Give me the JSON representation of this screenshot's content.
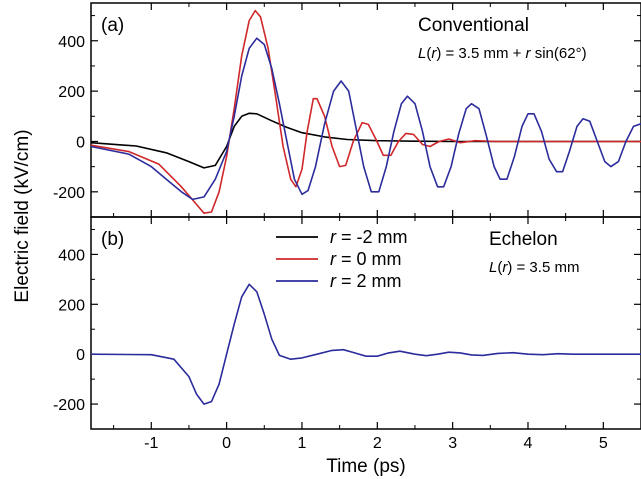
{
  "chart_data": {
    "type": "line",
    "xlabel": "Time (ps)",
    "ylabel": "Electric field (kV/cm)",
    "xlim": [
      -1.8,
      5.5
    ],
    "x_ticks": [
      "-1",
      "0",
      "1",
      "2",
      "3",
      "4",
      "5"
    ],
    "legend": {
      "placement": "top-center",
      "entries": [
        {
          "var": "r",
          "text": " = -2 mm",
          "color": "#000000"
        },
        {
          "var": "r",
          "text": " = 0 mm",
          "color": "#d0282a"
        },
        {
          "var": "r",
          "text": " = 2 mm",
          "color": "#2c2c9c"
        }
      ]
    },
    "panels": [
      {
        "id": "a",
        "tag": "(a)",
        "title": "Conventional",
        "note": {
          "prefix": "L",
          "var": "(r)",
          "mid": " = 3.5 mm + ",
          "var2": "r",
          "suffix": " sin(62°)"
        },
        "ylim": [
          -300,
          550
        ],
        "y_ticks": [
          "-200",
          "0",
          "200",
          "400"
        ],
        "series": [
          {
            "color": "#000000",
            "points": [
              [
                -1.8,
                -5
              ],
              [
                -1.2,
                -18
              ],
              [
                -0.8,
                -45
              ],
              [
                -0.5,
                -80
              ],
              [
                -0.3,
                -105
              ],
              [
                -0.15,
                -95
              ],
              [
                0,
                -20
              ],
              [
                0.1,
                60
              ],
              [
                0.2,
                100
              ],
              [
                0.3,
                112
              ],
              [
                0.4,
                110
              ],
              [
                0.6,
                82
              ],
              [
                0.8,
                56
              ],
              [
                1.0,
                35
              ],
              [
                1.3,
                18
              ],
              [
                1.6,
                8
              ],
              [
                2.0,
                3
              ],
              [
                2.5,
                1
              ],
              [
                3.0,
                0
              ],
              [
                5.5,
                0
              ]
            ]
          },
          {
            "color": "#d0282a",
            "points": [
              [
                -1.8,
                -15
              ],
              [
                -1.3,
                -40
              ],
              [
                -0.9,
                -90
              ],
              [
                -0.6,
                -180
              ],
              [
                -0.4,
                -250
              ],
              [
                -0.3,
                -285
              ],
              [
                -0.2,
                -280
              ],
              [
                -0.1,
                -200
              ],
              [
                0,
                -60
              ],
              [
                0.1,
                130
              ],
              [
                0.2,
                340
              ],
              [
                0.3,
                480
              ],
              [
                0.38,
                520
              ],
              [
                0.45,
                495
              ],
              [
                0.55,
                370
              ],
              [
                0.65,
                180
              ],
              [
                0.75,
                -20
              ],
              [
                0.85,
                -150
              ],
              [
                0.92,
                -180
              ],
              [
                1.0,
                -110
              ],
              [
                1.07,
                40
              ],
              [
                1.15,
                170
              ],
              [
                1.2,
                170
              ],
              [
                1.3,
                100
              ],
              [
                1.4,
                -20
              ],
              [
                1.5,
                -100
              ],
              [
                1.58,
                -95
              ],
              [
                1.68,
                0
              ],
              [
                1.8,
                75
              ],
              [
                1.88,
                68
              ],
              [
                1.98,
                10
              ],
              [
                2.08,
                -55
              ],
              [
                2.18,
                -55
              ],
              [
                2.28,
                0
              ],
              [
                2.38,
                32
              ],
              [
                2.48,
                28
              ],
              [
                2.6,
                -12
              ],
              [
                2.7,
                -20
              ],
              [
                2.82,
                0
              ],
              [
                2.95,
                10
              ],
              [
                3.1,
                -5
              ],
              [
                3.3,
                3
              ],
              [
                3.6,
                0
              ],
              [
                5.5,
                0
              ]
            ]
          },
          {
            "color": "#2c2c9c",
            "points": [
              [
                -1.8,
                -20
              ],
              [
                -1.3,
                -50
              ],
              [
                -1.0,
                -100
              ],
              [
                -0.8,
                -150
              ],
              [
                -0.6,
                -200
              ],
              [
                -0.45,
                -230
              ],
              [
                -0.3,
                -220
              ],
              [
                -0.15,
                -150
              ],
              [
                0,
                -40
              ],
              [
                0.1,
                100
              ],
              [
                0.2,
                260
              ],
              [
                0.3,
                370
              ],
              [
                0.4,
                410
              ],
              [
                0.5,
                385
              ],
              [
                0.6,
                290
              ],
              [
                0.7,
                150
              ],
              [
                0.8,
                0
              ],
              [
                0.9,
                -150
              ],
              [
                1.0,
                -210
              ],
              [
                1.08,
                -195
              ],
              [
                1.18,
                -100
              ],
              [
                1.3,
                70
              ],
              [
                1.42,
                200
              ],
              [
                1.52,
                240
              ],
              [
                1.62,
                200
              ],
              [
                1.72,
                50
              ],
              [
                1.82,
                -100
              ],
              [
                1.92,
                -200
              ],
              [
                2.02,
                -200
              ],
              [
                2.12,
                -100
              ],
              [
                2.22,
                40
              ],
              [
                2.32,
                150
              ],
              [
                2.4,
                180
              ],
              [
                2.5,
                150
              ],
              [
                2.6,
                40
              ],
              [
                2.7,
                -100
              ],
              [
                2.8,
                -180
              ],
              [
                2.88,
                -180
              ],
              [
                2.98,
                -100
              ],
              [
                3.08,
                30
              ],
              [
                3.18,
                130
              ],
              [
                3.25,
                150
              ],
              [
                3.35,
                130
              ],
              [
                3.45,
                20
              ],
              [
                3.55,
                -100
              ],
              [
                3.63,
                -150
              ],
              [
                3.72,
                -150
              ],
              [
                3.82,
                -60
              ],
              [
                3.92,
                60
              ],
              [
                4.0,
                110
              ],
              [
                4.08,
                110
              ],
              [
                4.18,
                40
              ],
              [
                4.28,
                -70
              ],
              [
                4.38,
                -120
              ],
              [
                4.46,
                -120
              ],
              [
                4.55,
                -40
              ],
              [
                4.65,
                60
              ],
              [
                4.73,
                90
              ],
              [
                4.82,
                80
              ],
              [
                4.92,
                0
              ],
              [
                5.02,
                -80
              ],
              [
                5.1,
                -100
              ],
              [
                5.2,
                -80
              ],
              [
                5.3,
                0
              ],
              [
                5.4,
                60
              ],
              [
                5.5,
                70
              ]
            ]
          }
        ]
      },
      {
        "id": "b",
        "tag": "(b)",
        "title": "Echelon",
        "note": {
          "prefix": "L",
          "var": "(r)",
          "mid": " = 3.5 mm",
          "var2": "",
          "suffix": ""
        },
        "ylim": [
          -300,
          550
        ],
        "y_ticks": [
          "-200",
          "0",
          "200",
          "400"
        ],
        "series": [
          {
            "color": "#2c2c9c",
            "points": [
              [
                -1.8,
                0
              ],
              [
                -1.0,
                -2
              ],
              [
                -0.7,
                -20
              ],
              [
                -0.5,
                -90
              ],
              [
                -0.4,
                -160
              ],
              [
                -0.3,
                -200
              ],
              [
                -0.2,
                -190
              ],
              [
                -0.1,
                -120
              ],
              [
                0,
                0
              ],
              [
                0.1,
                120
              ],
              [
                0.2,
                230
              ],
              [
                0.3,
                280
              ],
              [
                0.4,
                250
              ],
              [
                0.5,
                160
              ],
              [
                0.6,
                60
              ],
              [
                0.7,
                -5
              ],
              [
                0.85,
                -20
              ],
              [
                1.0,
                -15
              ],
              [
                1.2,
                0
              ],
              [
                1.4,
                15
              ],
              [
                1.55,
                18
              ],
              [
                1.7,
                5
              ],
              [
                1.85,
                -8
              ],
              [
                2.0,
                -8
              ],
              [
                2.15,
                5
              ],
              [
                2.3,
                12
              ],
              [
                2.5,
                0
              ],
              [
                2.65,
                -6
              ],
              [
                2.8,
                0
              ],
              [
                2.95,
                8
              ],
              [
                3.1,
                5
              ],
              [
                3.25,
                -3
              ],
              [
                3.4,
                -5
              ],
              [
                3.6,
                3
              ],
              [
                3.8,
                6
              ],
              [
                4.0,
                0
              ],
              [
                4.2,
                -2
              ],
              [
                4.4,
                2
              ],
              [
                4.6,
                0
              ],
              [
                5.5,
                0
              ]
            ]
          }
        ]
      }
    ]
  }
}
